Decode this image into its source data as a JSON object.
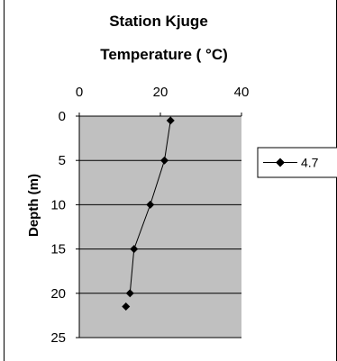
{
  "chart_data": {
    "type": "scatter",
    "title": "Station Kjuge",
    "xlabel": "Temperature ( °C)",
    "ylabel": "Depth (m)",
    "xlim": [
      0,
      40
    ],
    "ylim": [
      0,
      25
    ],
    "x_ticks": [
      "0",
      "20",
      "40"
    ],
    "y_ticks": [
      "0",
      "5",
      "10",
      "15",
      "20",
      "25"
    ],
    "x_axis_position": "top",
    "y_axis_inverted": true,
    "grid": "horizontal",
    "plot_background": "#c0c0c0",
    "legend_position": "right",
    "series": [
      {
        "name": "4.7",
        "color": "#000000",
        "marker": "diamond",
        "x": [
          22.5,
          21,
          17.5,
          13.5,
          12.5,
          11.5
        ],
        "y": [
          0.5,
          5,
          10,
          15,
          20,
          21.5
        ],
        "line_points": 5
      }
    ]
  }
}
